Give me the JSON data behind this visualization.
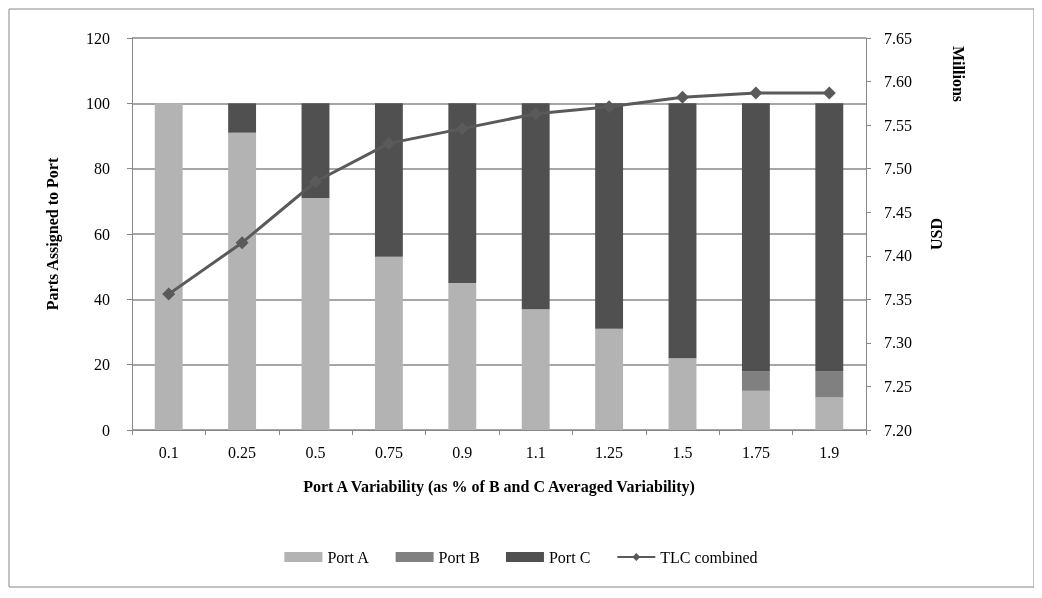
{
  "chart_data": {
    "type": "bar",
    "stacked": true,
    "xlabel": "Port A Variability (as % of B and C Averaged Variability)",
    "ylabel": "Parts Assigned to Port",
    "y2label": "USD",
    "annotations": [
      "Millions"
    ],
    "categories": [
      "0.1",
      "0.25",
      "0.5",
      "0.75",
      "0.9",
      "1.1",
      "1.25",
      "1.5",
      "1.75",
      "1.9"
    ],
    "series": [
      {
        "name": "Port A",
        "color": "#b3b3b3",
        "values": [
          100,
          91,
          71,
          53,
          45,
          37,
          31,
          22,
          12,
          10
        ]
      },
      {
        "name": "Port B",
        "color": "#808080",
        "values": [
          0,
          0,
          0,
          0,
          0,
          0,
          0,
          0,
          6,
          8
        ]
      },
      {
        "name": "Port C",
        "color": "#505050",
        "values": [
          0,
          9,
          29,
          47,
          55,
          63,
          69,
          78,
          82,
          82
        ]
      },
      {
        "name": "TLC combined",
        "type": "line",
        "axis": "y2",
        "color": "#5a5a5a",
        "marker": "diamond",
        "values": [
          7.356,
          7.415,
          7.485,
          7.529,
          7.546,
          7.563,
          7.571,
          7.582,
          7.587,
          7.587
        ]
      }
    ],
    "ylim": [
      0,
      120
    ],
    "yticks": [
      0,
      20,
      40,
      60,
      80,
      100,
      120
    ],
    "y2lim": [
      7.2,
      7.65
    ],
    "y2ticks": [
      {
        "value": 7.2,
        "label": "7.20"
      },
      {
        "value": 7.25,
        "label": "7.25"
      },
      {
        "value": 7.3,
        "label": "7.30"
      },
      {
        "value": 7.35,
        "label": "7.35"
      },
      {
        "value": 7.4,
        "label": "7.40"
      },
      {
        "value": 7.45,
        "label": "7.45"
      },
      {
        "value": 7.5,
        "label": "7.50"
      },
      {
        "value": 7.55,
        "label": "7.55"
      },
      {
        "value": 7.6,
        "label": "7.60"
      },
      {
        "value": 7.65,
        "label": "7.65"
      }
    ],
    "grid": "y",
    "legend": "bottom"
  }
}
